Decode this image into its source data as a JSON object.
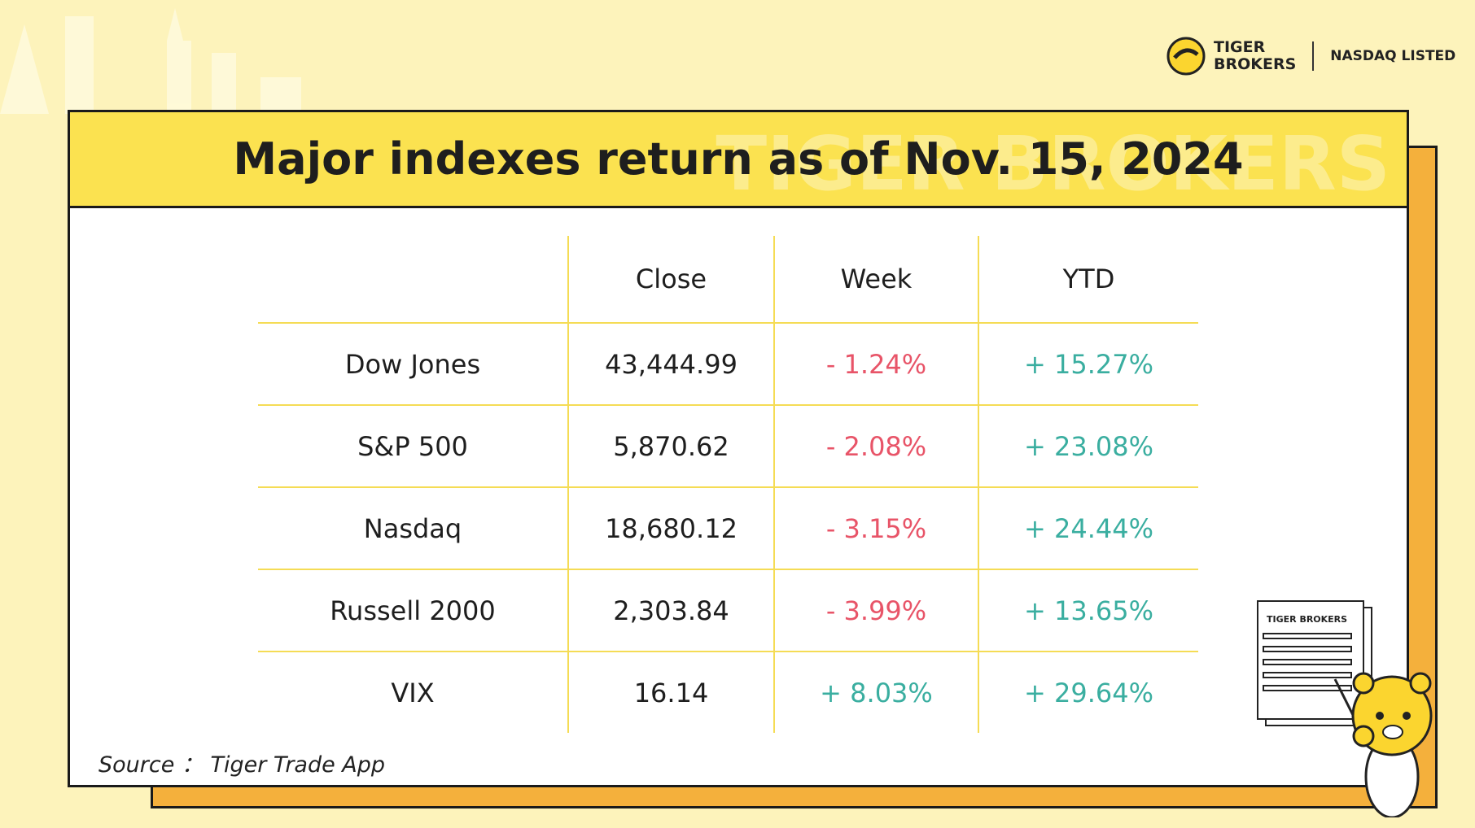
{
  "header": {
    "logo_top": "TIGER",
    "logo_bottom": "BROKERS",
    "listing": "NASDAQ LISTED"
  },
  "title": "Major indexes return as of Nov. 15, 2024",
  "watermark": "TIGER BROKERS",
  "table": {
    "columns": [
      "Close",
      "Week",
      "YTD"
    ],
    "rows": [
      [
        "Dow Jones",
        "43,444.99",
        "- 1.24%",
        "+ 15.27%"
      ],
      [
        "S&P 500",
        "5,870.62",
        "- 2.08%",
        "+ 23.08%"
      ],
      [
        "Nasdaq",
        "18,680.12",
        "- 3.15%",
        "+ 24.44%"
      ],
      [
        "Russell 2000",
        "2,303.84",
        "- 3.99%",
        "+ 13.65%"
      ],
      [
        "VIX",
        "16.14",
        "+ 8.03%",
        "+ 29.64%"
      ]
    ]
  },
  "source": "Source ：  Tiger Trade App",
  "mascot_sign": "TIGER BROKERS"
}
